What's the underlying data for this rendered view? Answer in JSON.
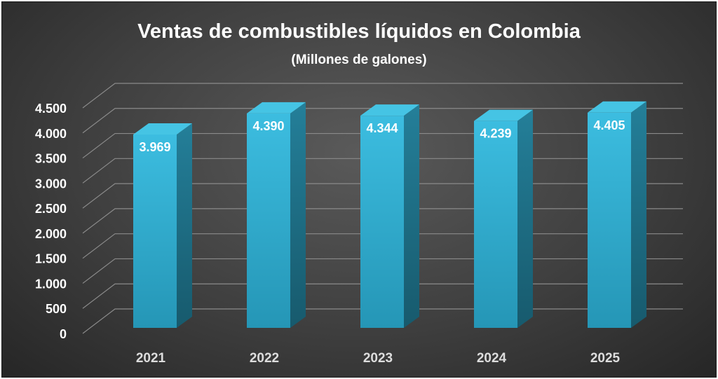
{
  "chart_data": {
    "type": "bar",
    "title": "Ventas de combustibles líquidos en Colombia",
    "subtitle": "(Millones de galones)",
    "categories": [
      "2021",
      "2022",
      "2023",
      "2024",
      "2025"
    ],
    "values": [
      3969,
      4390,
      4344,
      4239,
      4405
    ],
    "data_labels": [
      "3.969",
      "4.390",
      "4.344",
      "4.239",
      "4.405"
    ],
    "y_ticks": [
      0,
      500,
      1000,
      1500,
      2000,
      2500,
      3000,
      3500,
      4000,
      4500
    ],
    "y_tick_labels": [
      "0",
      "500",
      "1.000",
      "1.500",
      "2.000",
      "2.500",
      "3.000",
      "3.500",
      "4.000",
      "4.500"
    ],
    "ylim": [
      0,
      4500
    ],
    "grid": true,
    "style": "3d-column",
    "colors": {
      "bar_front": "#2fb0d4",
      "bar_side": "#1d6f87",
      "bar_top": "#45c4e4",
      "grid": "#8a8a8a",
      "text": "#ffffff"
    }
  }
}
